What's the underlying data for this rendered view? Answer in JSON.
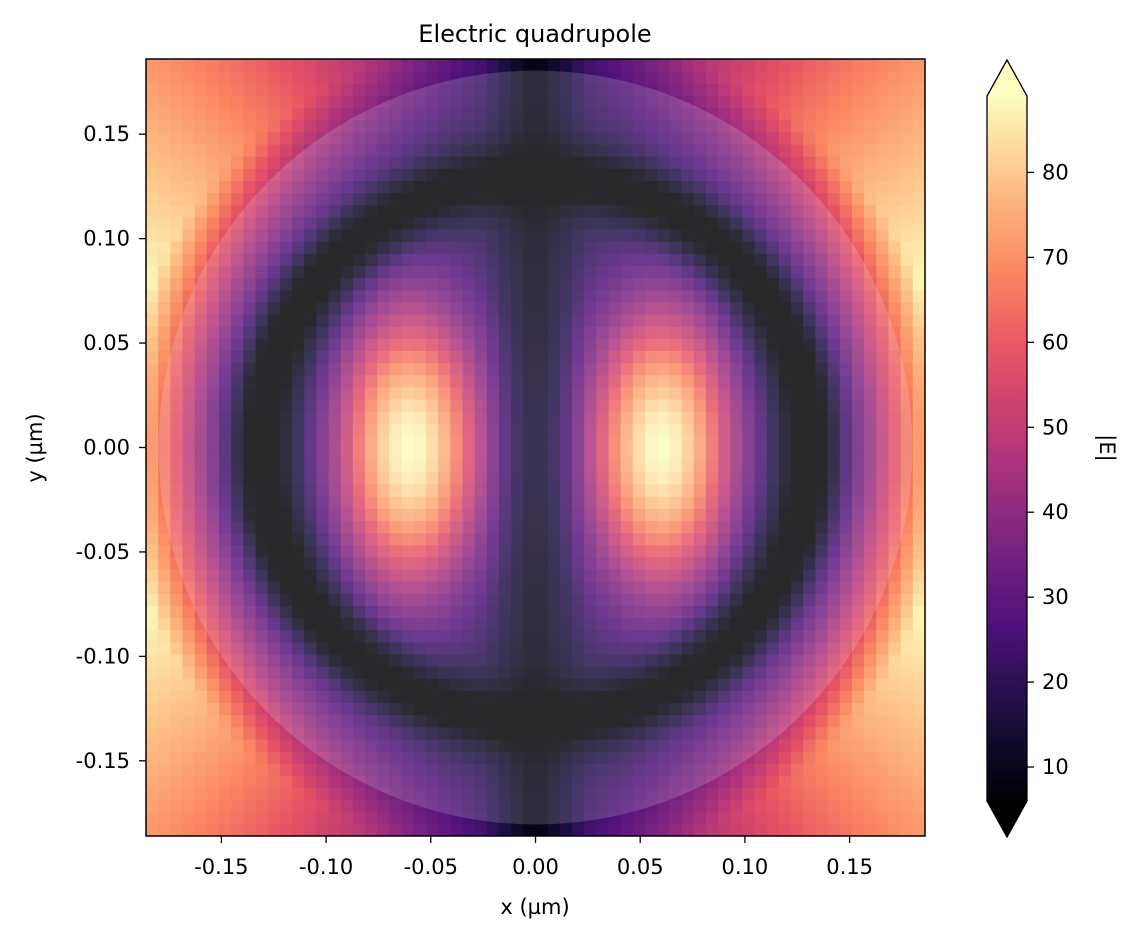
{
  "chart_data": {
    "type": "heatmap",
    "title": "Electric quadrupole",
    "xlabel": "x (µm)",
    "ylabel": "y (µm)",
    "colorbar_label": "|E|",
    "colormap": "magma",
    "colorbar_extend": "both",
    "xlim": [
      -0.186,
      0.186
    ],
    "ylim": [
      -0.186,
      0.186
    ],
    "clim": [
      6,
      89
    ],
    "x_ticks": [
      -0.15,
      -0.1,
      -0.05,
      0.0,
      0.05,
      0.1,
      0.15
    ],
    "x_tick_labels": [
      "-0.15",
      "-0.10",
      "-0.05",
      "0.00",
      "0.05",
      "0.10",
      "0.15"
    ],
    "y_ticks": [
      0.15,
      0.1,
      0.05,
      0.0,
      -0.05,
      -0.1,
      -0.15
    ],
    "y_tick_labels": [
      "0.15",
      "0.10",
      "0.05",
      "0.00",
      "-0.05",
      "-0.10",
      "-0.15"
    ],
    "colorbar_ticks": [
      10,
      20,
      30,
      40,
      50,
      60,
      70,
      80
    ],
    "colorbar_tick_labels": [
      "10",
      "20",
      "30",
      "40",
      "50",
      "60",
      "70",
      "80"
    ],
    "grid_cells": 64,
    "field_features": {
      "lobe_centers_x": [
        -0.06,
        0.06
      ],
      "lobe_center_y": 0.0,
      "lobe_peak": 89,
      "node_ring_radius": 0.13,
      "outer_corner_max": 78,
      "central_axis_min": 6
    },
    "overlay": {
      "shape": "circle",
      "center": [
        0.0,
        0.0
      ],
      "radius": 0.18,
      "fill": "#ffffff",
      "opacity": 0.16
    },
    "grid": false
  }
}
